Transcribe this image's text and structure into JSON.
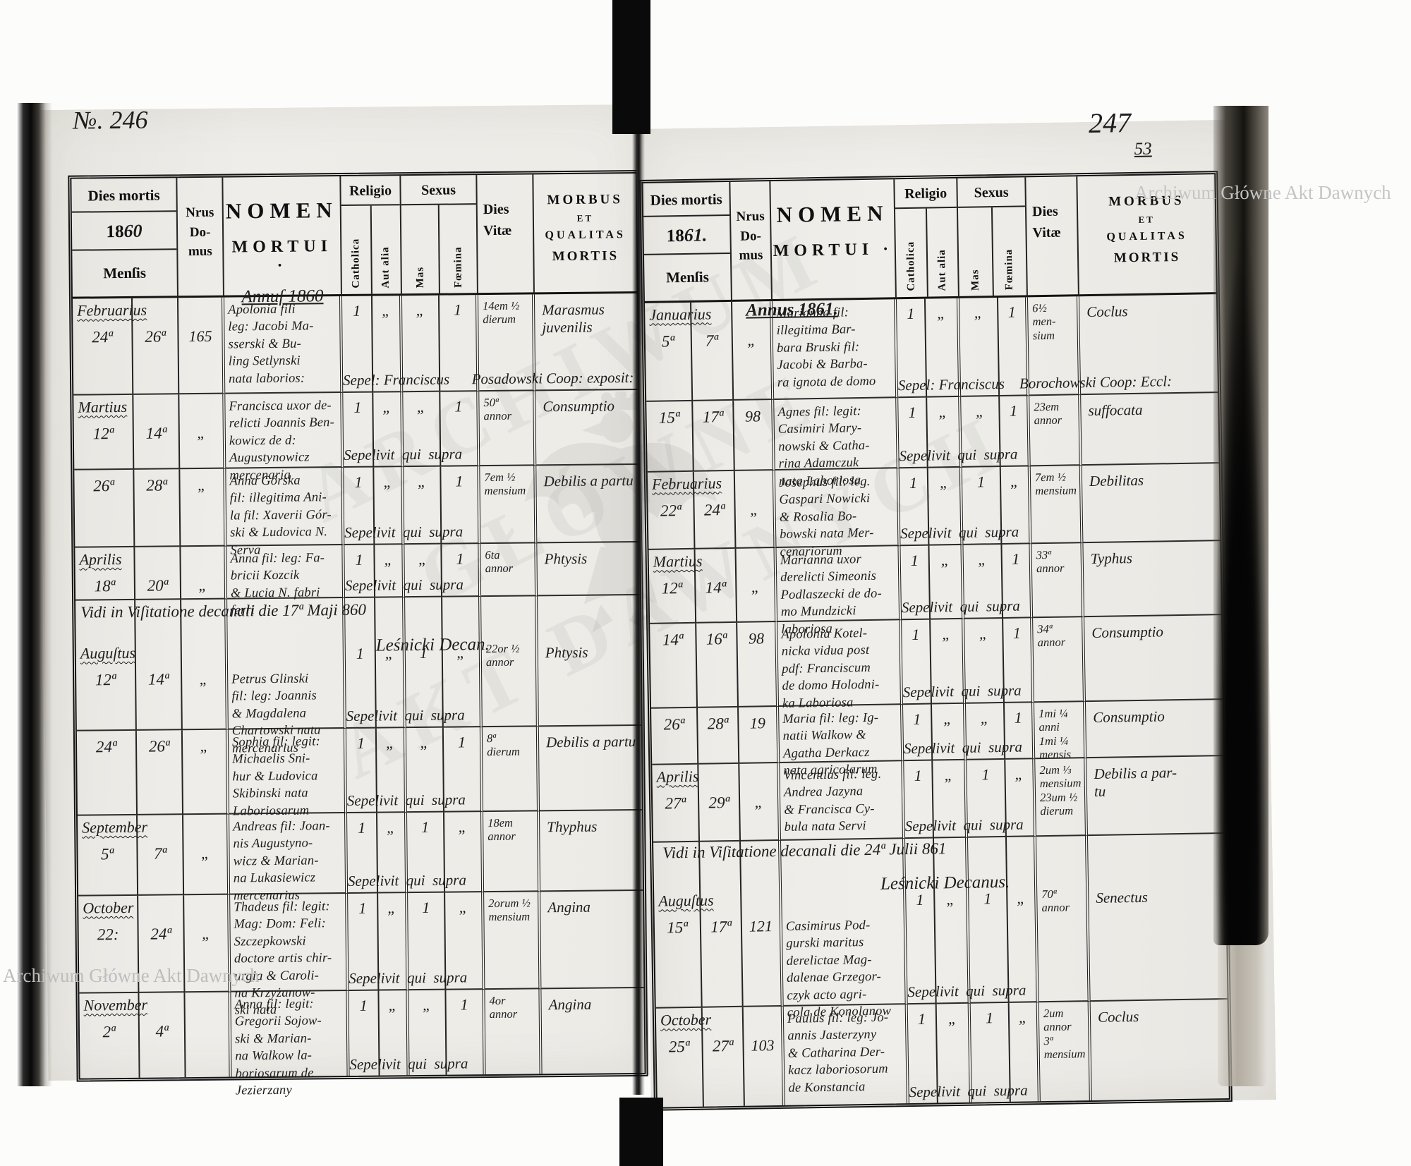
{
  "watermark": {
    "text": "Archiwum Główne Akt Dawnych",
    "big_lines": [
      "ARCHIWUM",
      "GŁÓWNE",
      "AKT DAWNYCH"
    ]
  },
  "folios": {
    "left": "№. 246",
    "right_main": "247",
    "right_sub": "53"
  },
  "header": {
    "dies_mortis": "Dies mortis",
    "year_printed": "18",
    "mensis": "Menſis",
    "nrus": "Nrus",
    "do": "Do-",
    "mus": "mus",
    "nomen": "NOMEN",
    "mortui": "MORTUI ·",
    "religio": "Religio",
    "catholica": "Catholica",
    "aut_alia": "Aut alia",
    "sexus": "Sexus",
    "mas": "Mas",
    "femina": "Fœmina",
    "dies": "Dies",
    "vitae": "Vitæ",
    "morbus": "MORBUS",
    "et": "ET",
    "qualitas": "QUALITAS",
    "mortis": "MORTIS"
  },
  "left_page": {
    "year_hand": "60",
    "annus_note": "Annuſ 1860",
    "annotation": {
      "line1": "Vidi in  Viſitatione  decanali  die 17ª Maji 860",
      "line2": "Leśnicki Decan."
    },
    "rows": [
      {
        "month": "Februarius",
        "d1": "24ª",
        "d2": "26ª",
        "house": "165",
        "name": "Apolonia fili\nleg: Jacobi Ma-\nsserski & Bu-\nling Setlynski\nnata laborios:",
        "sepel": "Sepel: Franciscus      Posadowski Coop: exposit:",
        "cath": "1",
        "alia": "„",
        "mas": "„",
        "fem": "1",
        "vitae": "14em ½\ndierum",
        "morbus": "Marasmus\njuvenilis"
      },
      {
        "month": "Martius",
        "d1": "12ª",
        "d2": "14ª",
        "house": "„",
        "name": "Francisca uxor de-\nrelicti Joannis Ben-\nkowicz de d:\nAugustynowicz\nmercenaria",
        "sepel": "Sepelivit  qui  supra",
        "cath": "1",
        "alia": "„",
        "mas": "„",
        "fem": "1",
        "vitae": "50ª\nannor",
        "morbus": "Consumptio"
      },
      {
        "month": "",
        "d1": "26ª",
        "d2": "28ª",
        "house": "„",
        "name": "Anna Górska\nfil: illegitima Ani-\nla fil: Xaverii Gór-\nski & Ludovica N.\nServa",
        "sepel": "Sepelivit  qui  supra",
        "cath": "1",
        "alia": "„",
        "mas": "„",
        "fem": "1",
        "vitae": "7em ½\nmensium",
        "morbus": "Debilis a partu"
      },
      {
        "month": "Aprilis",
        "d1": "18ª",
        "d2": "20ª",
        "house": "„",
        "name": "Anna fil: leg: Fa-\nbricii Kozcik\n& Lucia N. fabri\nferri",
        "sepel": "Sepelivit  qui  supra",
        "cath": "1",
        "alia": "„",
        "mas": "„",
        "fem": "1",
        "vitae": "6ta\nannor",
        "morbus": "Phtysis"
      },
      {
        "month": "Auguſtus",
        "d1": "12ª",
        "d2": "14ª",
        "house": "„",
        "name": "Petrus Glinski\nfil: leg: Joannis\n& Magdalena\nChartowski nata\nmercenarius",
        "sepel": "Sepelivit  qui  supra",
        "cath": "1",
        "alia": "„",
        "mas": "1",
        "fem": "„",
        "vitae": "22or ½\nannor",
        "morbus": "Phtysis"
      },
      {
        "month": "",
        "d1": "24ª",
        "d2": "26ª",
        "house": "„",
        "name": "Sophia fil: legit:\nMichaelis Sni-\nhur & Ludovica\nSkibinski nata\nLaboriosarum",
        "sepel": "Sepelivit  qui  supra",
        "cath": "1",
        "alia": "„",
        "mas": "„",
        "fem": "1",
        "vitae": "8ª\ndierum",
        "morbus": "Debilis a partu"
      },
      {
        "month": "September",
        "d1": "5ª",
        "d2": "7ª",
        "house": "„",
        "name": "Andreas fil: Joan-\nnis Augustyno-\nwicz & Marian-\nna Lukasiewicz\nmercenarius",
        "sepel": "Sepelivit  qui  supra",
        "cath": "1",
        "alia": "„",
        "mas": "1",
        "fem": "„",
        "vitae": "18em\nannor",
        "morbus": "Thyphus"
      },
      {
        "month": "October",
        "d1": "22:",
        "d2": "24ª",
        "house": "„",
        "name": "Thadeus fil: legit:\nMag: Dom: Feli:\nSzczepkowski\ndoctore artis chir-\nurgia & Caroli-\nna Krzyżanow-\nski nata",
        "sepel": "Sepelivit  qui  supra",
        "cath": "1",
        "alia": "„",
        "mas": "1",
        "fem": "„",
        "vitae": "2orum ½\nmensium",
        "morbus": "Angina"
      },
      {
        "month": "November",
        "d1": "2ª",
        "d2": "4ª",
        "house": "",
        "name": "Anna fil: legit:\nGregorii Sojow-\nski & Marian-\nna Walkow la-\nboriosarum de\nJezierzany",
        "sepel": "Sepelivit  qui  supra",
        "cath": "1",
        "alia": "„",
        "mas": "„",
        "fem": "1",
        "vitae": "4or\nannor",
        "morbus": "Angina"
      }
    ]
  },
  "right_page": {
    "year_hand": "61.",
    "annus_note": "Annus 1861.",
    "annotation": {
      "line1": "Vidi  in  Viſitatione  decanali  die 24ª Julii 861",
      "line2": "Leśnicki Decanus."
    },
    "rows": [
      {
        "month": "Januarius",
        "d1": "5ª",
        "d2": "7ª",
        "house": "„",
        "name": "Marianna fil:\nillegitima Bar-\nbara Bruski fil:\nJacobi & Barba-\nra ignota de domo",
        "sepel": "Sepel: Franciscus    Borochowski Coop: Eccl:",
        "cath": "1",
        "alia": "„",
        "mas": "„",
        "fem": "1",
        "vitae": "6½\nmen-\nsium",
        "morbus": "Coclus"
      },
      {
        "month": "",
        "d1": "15ª",
        "d2": "17ª",
        "house": "98",
        "name": "Agnes fil: legit:\nCasimiri Mary-\nnowski & Catha-\nrina Adamczuk\nnata Laboriosa",
        "sepel": "Sepelivit  qui  supra",
        "cath": "1",
        "alia": "„",
        "mas": "„",
        "fem": "1",
        "vitae": "23em\nannor",
        "morbus": "suffocata"
      },
      {
        "month": "Februarius",
        "d1": "22ª",
        "d2": "24ª",
        "house": "„",
        "name": "Josephus fil: leg.\nGaspari Nowicki\n& Rosalia Bo-\nbowski nata Mer-\ncenariorum",
        "sepel": "Sepelivit  qui  supra",
        "cath": "1",
        "alia": "„",
        "mas": "1",
        "fem": "„",
        "vitae": "7em ½\nmensium",
        "morbus": "Debilitas"
      },
      {
        "month": "Martius",
        "d1": "12ª",
        "d2": "14ª",
        "house": "„",
        "name": "Marianna uxor\nderelicti Simeonis\nPodlaszecki de do-\nmo Mundzicki\nlaboriosa",
        "sepel": "Sepelivit  qui  supra",
        "cath": "1",
        "alia": "„",
        "mas": "„",
        "fem": "1",
        "vitae": "33ª\nannor",
        "morbus": "Typhus"
      },
      {
        "month": "",
        "d1": "14ª",
        "d2": "16ª",
        "house": "98",
        "name": "Apolonia Kotel-\nnicka vidua post\npdf: Franciscum\nde domo Holodni-\nka Laboriosa",
        "sepel": "Sepelivit  qui  supra",
        "cath": "1",
        "alia": "„",
        "mas": "„",
        "fem": "1",
        "vitae": "34ª\nannor",
        "morbus": "Consumptio"
      },
      {
        "month": "",
        "d1": "26ª",
        "d2": "28ª",
        "house": "19",
        "name": "Maria fil: leg: Ig-\nnatii Walkow &\nAgatha Derkacz\nnata agricolarum",
        "sepel": "Sepelivit  qui  supra",
        "cath": "1",
        "alia": "„",
        "mas": "„",
        "fem": "1",
        "vitae": "1mi ¼\nanni\n1mi ¼\nmensis",
        "morbus": "Consumptio"
      },
      {
        "month": "Aprilis",
        "d1": "27ª",
        "d2": "29ª",
        "house": "„",
        "name": "Vincentius fil: leg.\nAndrea Jazyna\n& Francisca Cy-\nbula nata Servi",
        "sepel": "Sepelivit  qui  supra",
        "cath": "1",
        "alia": "„",
        "mas": "1",
        "fem": "„",
        "vitae": "2um ⅓\nmensium\n23um ½\ndierum",
        "morbus": "Debilis a par-\ntu"
      },
      {
        "month": "Auguſtus",
        "d1": "15ª",
        "d2": "17ª",
        "house": "121",
        "name": "Casimirus Pod-\ngurski maritus\nderelictae Mag-\ndalenae Grzegor-\nczyk acto agri-\ncola de Konolanow",
        "sepel": "Sepelivit  qui  supra",
        "cath": "1",
        "alia": "„",
        "mas": "1",
        "fem": "„",
        "vitae": "70ª\nannor",
        "morbus": "Senectus"
      },
      {
        "month": "October",
        "d1": "25ª",
        "d2": "27ª",
        "house": "103",
        "name": "Paulus fil: leg: Jo-\nannis Jasterzyny\n& Catharina Der-\nkacz laboriosorum\nde Konstancia",
        "sepel": "Sepelivit  qui  supra",
        "cath": "1",
        "alia": "„",
        "mas": "1",
        "fem": "„",
        "vitae": "2um\nannor\n3ª\nmensium",
        "morbus": "Coclus"
      }
    ]
  }
}
